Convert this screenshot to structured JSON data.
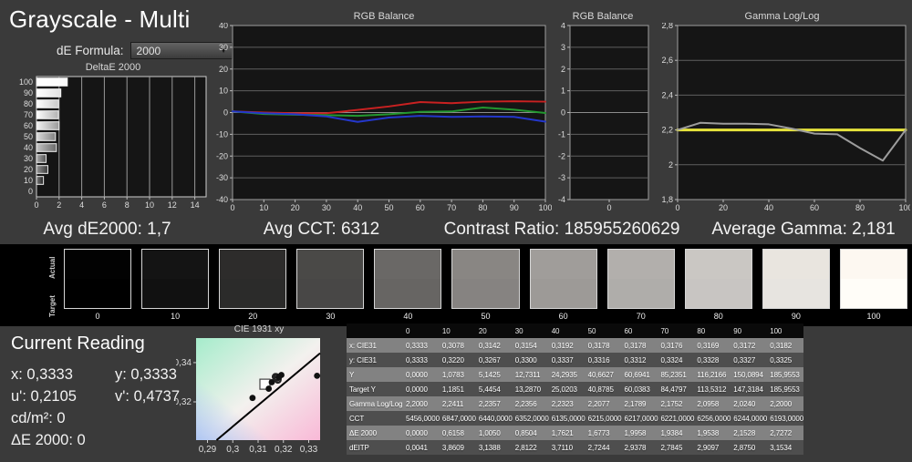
{
  "header": {
    "title": "Grayscale - Multi",
    "de_formula_label": "dE Formula:",
    "de_formula_value": "2000"
  },
  "stats": {
    "avg_de": "Avg dE2000: 1,7",
    "avg_cct": "Avg CCT: 6312",
    "contrast_ratio": "Contrast Ratio: 185955260629",
    "avg_gamma": "Average Gamma: 2,181"
  },
  "swatches": {
    "row_labels": [
      "Actual",
      "Target"
    ],
    "levels": [
      "0",
      "10",
      "20",
      "30",
      "40",
      "50",
      "60",
      "70",
      "80",
      "90",
      "100"
    ],
    "actual_colors": [
      "#020202",
      "#141414",
      "#2d2c2b",
      "#4a4947",
      "#6a6866",
      "#898683",
      "#a09d9a",
      "#b2afac",
      "#cac7c3",
      "#e9e5df",
      "#fdf8f1"
    ],
    "target_colors": [
      "#000000",
      "#111111",
      "#2b2b2a",
      "#484746",
      "#676563",
      "#868381",
      "#9d9a97",
      "#afadaa",
      "#c8c5c2",
      "#e7e4e0",
      "#fffdf8"
    ]
  },
  "reading": {
    "title": "Current Reading",
    "rows": [
      [
        "x: 0,3333",
        "y: 0,3333"
      ],
      [
        "u': 0,2105",
        "v': 0,4737"
      ],
      [
        "cd/m²: 0",
        ""
      ],
      [
        "ΔE 2000: 0",
        ""
      ]
    ]
  },
  "table": {
    "columns": [
      "",
      "0",
      "10",
      "20",
      "30",
      "40",
      "50",
      "60",
      "70",
      "80",
      "90",
      "100"
    ],
    "rows": [
      {
        "label": "x: CIE31",
        "values": [
          "0,3333",
          "0,3078",
          "0,3142",
          "0,3154",
          "0,3192",
          "0,3178",
          "0,3178",
          "0,3176",
          "0,3169",
          "0,3172",
          "0,3182"
        ]
      },
      {
        "label": "y: CIE31",
        "values": [
          "0,3333",
          "0,3220",
          "0,3267",
          "0,3300",
          "0,3337",
          "0,3316",
          "0,3312",
          "0,3324",
          "0,3328",
          "0,3327",
          "0,3325"
        ]
      },
      {
        "label": "Y",
        "values": [
          "0,0000",
          "1,0783",
          "5,1425",
          "12,7311",
          "24,2935",
          "40,6627",
          "60,6941",
          "85,2351",
          "116,2166",
          "150,0894",
          "185,9553"
        ]
      },
      {
        "label": "Target Y",
        "values": [
          "0,0000",
          "1,1851",
          "5,4454",
          "13,2870",
          "25,0203",
          "40,8785",
          "60,0383",
          "84,4797",
          "113,5312",
          "147,3184",
          "185,9553"
        ]
      },
      {
        "label": "Gamma Log/Log",
        "values": [
          "2,2000",
          "2,2411",
          "2,2357",
          "2,2356",
          "2,2323",
          "2,2077",
          "2,1789",
          "2,1752",
          "2,0958",
          "2,0240",
          "2,2000"
        ]
      },
      {
        "label": "CCT",
        "values": [
          "5456,0000",
          "6847,0000",
          "6440,0000",
          "6352,0000",
          "6135,0000",
          "6215,0000",
          "6217,0000",
          "6221,0000",
          "6256,0000",
          "6244,0000",
          "6193,0000"
        ]
      },
      {
        "label": "ΔE 2000",
        "values": [
          "0,0000",
          "0,6158",
          "1,0050",
          "0,8504",
          "1,7621",
          "1,6773",
          "1,9958",
          "1,9384",
          "1,9538",
          "2,1528",
          "2,7272"
        ]
      },
      {
        "label": "dEITP",
        "values": [
          "0,0041",
          "3,8609",
          "3,1388",
          "2,8122",
          "3,7110",
          "2,7244",
          "2,9378",
          "2,7845",
          "2,9097",
          "2,8750",
          "3,1534"
        ]
      }
    ]
  },
  "chart_data": {
    "deltae": {
      "type": "bar",
      "title": "DeltaE 2000",
      "orientation": "horizontal",
      "categories": [
        100,
        90,
        80,
        70,
        60,
        50,
        40,
        30,
        20,
        10,
        0
      ],
      "values": [
        2.7272,
        2.1528,
        1.9538,
        1.9384,
        1.9958,
        1.6773,
        1.7621,
        0.8504,
        1.005,
        0.6158,
        0.0
      ],
      "xlim": [
        0,
        15
      ],
      "xticks": [
        0,
        2,
        4,
        6,
        8,
        10,
        12,
        14
      ]
    },
    "rgb_balance": {
      "type": "line",
      "title": "RGB Balance",
      "x": [
        0,
        10,
        20,
        30,
        40,
        50,
        60,
        70,
        80,
        90,
        100
      ],
      "ylim": [
        -40,
        40
      ],
      "yticks": [
        40,
        30,
        20,
        10,
        0,
        -10,
        -20,
        -30,
        -40
      ],
      "xticks": [
        0,
        10,
        20,
        30,
        40,
        50,
        60,
        70,
        80,
        90,
        100
      ],
      "series": [
        {
          "name": "Red",
          "color": "#c92121",
          "values": [
            0.5,
            0.0,
            -0.3,
            -0.3,
            1.2,
            2.8,
            4.8,
            4.3,
            5.0,
            5.2,
            5.0
          ]
        },
        {
          "name": "Green",
          "color": "#23982f",
          "values": [
            0.5,
            -0.7,
            -1.0,
            -1.2,
            -1.5,
            -0.8,
            0.3,
            0.5,
            2.3,
            1.3,
            -0.2
          ]
        },
        {
          "name": "Blue",
          "color": "#2437cb",
          "values": [
            0.5,
            -0.3,
            -0.8,
            -1.8,
            -4.3,
            -2.3,
            -1.5,
            -2.0,
            -1.8,
            -2.0,
            -4.2
          ]
        }
      ]
    },
    "rgb_balance_detail": {
      "type": "line",
      "title": "RGB Balance",
      "x": [
        0
      ],
      "ylim": [
        -4,
        4
      ],
      "yticks": [
        4,
        3,
        2,
        1,
        0,
        -1,
        -2,
        -3,
        -4
      ],
      "xticks": [
        0
      ],
      "series": []
    },
    "gamma": {
      "type": "line",
      "title": "Gamma Log/Log",
      "x": [
        0,
        10,
        20,
        30,
        40,
        50,
        60,
        70,
        80,
        90,
        100
      ],
      "ylim": [
        1.8,
        2.8
      ],
      "yticks": [
        2.8,
        2.6,
        2.4,
        2.2,
        2.0,
        1.8
      ],
      "ytick_labels": [
        "2,8",
        "2,6",
        "2,4",
        "2,2",
        "2",
        "1,8"
      ],
      "xticks": [
        0,
        20,
        40,
        60,
        80,
        100
      ],
      "series": [
        {
          "name": "Target 2,2",
          "color": "#e6e33c",
          "width": 3,
          "values": [
            2.2,
            2.2,
            2.2,
            2.2,
            2.2,
            2.2,
            2.2,
            2.2,
            2.2,
            2.2,
            2.2
          ]
        },
        {
          "name": "Measured",
          "color": "#9c9c9c",
          "width": 2,
          "values": [
            2.2,
            2.2411,
            2.2357,
            2.2356,
            2.2323,
            2.2077,
            2.1789,
            2.1752,
            2.0958,
            2.024,
            2.2
          ]
        }
      ]
    },
    "cie": {
      "type": "scatter",
      "title": "CIE 1931 xy",
      "xlim": [
        0.2855,
        0.3345
      ],
      "ylim": [
        0.3005,
        0.3525
      ],
      "xticks": [
        0.29,
        0.3,
        0.31,
        0.32,
        0.33
      ],
      "xtick_labels": [
        "0,29",
        "0,3",
        "0,31",
        "0,32",
        "0,33"
      ],
      "yticks": [
        0.34,
        0.32
      ],
      "ytick_labels": [
        "0,34",
        "0,32"
      ],
      "locus_line": [
        [
          0.2936,
          0.3005
        ],
        [
          0.3345,
          0.3448
        ]
      ],
      "target_point": {
        "x": 0.3127,
        "y": 0.329
      },
      "points": [
        {
          "x": 0.3333,
          "y": 0.3333,
          "style": "filled"
        },
        {
          "x": 0.3078,
          "y": 0.322,
          "style": "filled"
        },
        {
          "x": 0.3142,
          "y": 0.3267,
          "style": "filled"
        },
        {
          "x": 0.3154,
          "y": 0.33,
          "style": "filled"
        },
        {
          "x": 0.3192,
          "y": 0.3337,
          "style": "filled"
        },
        {
          "x": 0.3178,
          "y": 0.3316,
          "style": "open"
        },
        {
          "x": 0.3178,
          "y": 0.3312,
          "style": "open"
        },
        {
          "x": 0.3176,
          "y": 0.3324,
          "style": "open"
        },
        {
          "x": 0.3169,
          "y": 0.3328,
          "style": "open"
        },
        {
          "x": 0.3172,
          "y": 0.3327,
          "style": "open"
        },
        {
          "x": 0.3182,
          "y": 0.3325,
          "style": "filled"
        }
      ]
    }
  }
}
